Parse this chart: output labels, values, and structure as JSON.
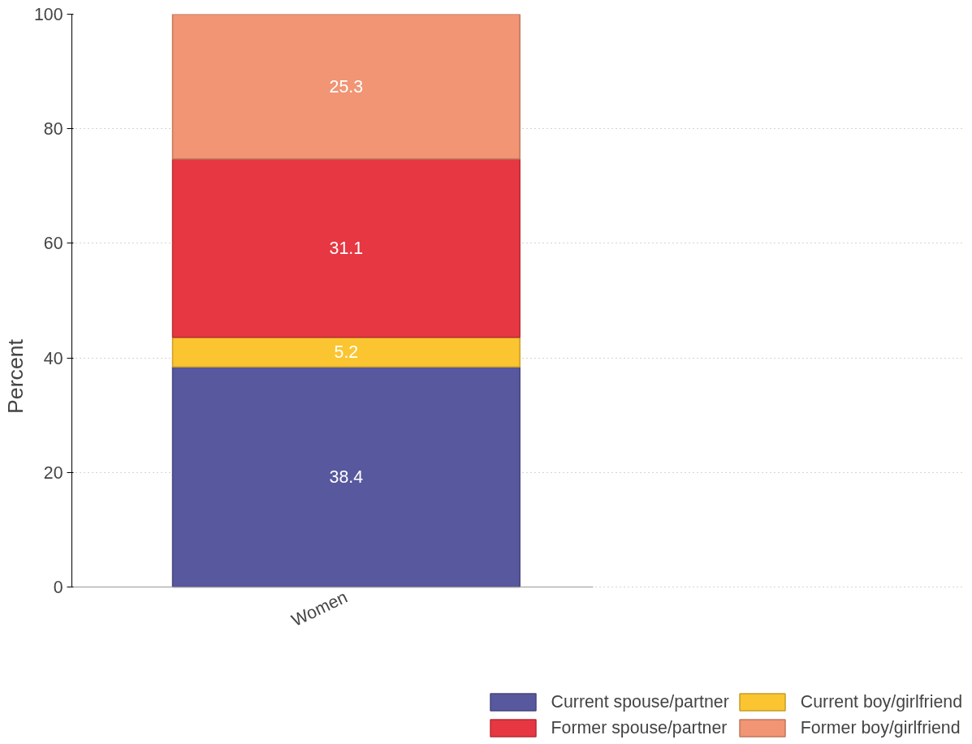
{
  "chart_data": {
    "type": "bar",
    "stacked": true,
    "ylabel": "Percent",
    "categories": [
      "Women"
    ],
    "series": [
      {
        "name": "Current spouse/partner",
        "color": "#58589e",
        "values": [
          38.4
        ]
      },
      {
        "name": "Current boy/girlfriend",
        "color": "#fbc531",
        "values": [
          5.2
        ]
      },
      {
        "name": "Former spouse/partner",
        "color": "#e63742",
        "values": [
          31.1
        ]
      },
      {
        "name": "Former boy/girlfriend",
        "color": "#f19574",
        "values": [
          25.3
        ]
      }
    ],
    "ylim": [
      0,
      100
    ],
    "yticks": [
      0,
      20,
      40,
      60,
      80,
      100
    ],
    "grid": "y",
    "legend": "bottom",
    "data_labels": true
  }
}
